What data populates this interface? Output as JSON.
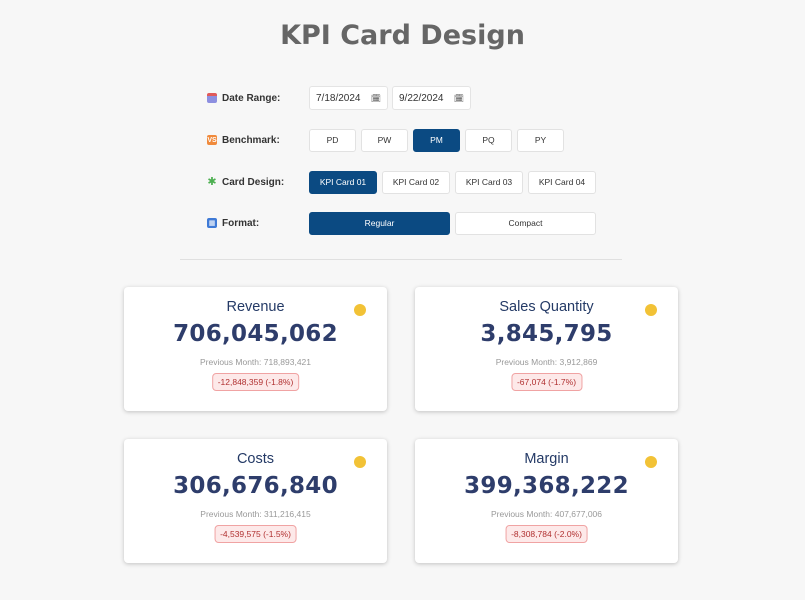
{
  "title": "KPI Card Design",
  "controls": {
    "date_range": {
      "label": "Date Range:",
      "start": "7/18/2024",
      "end": "9/22/2024"
    },
    "benchmark": {
      "label": "Benchmark:",
      "options": [
        "PD",
        "PW",
        "PM",
        "PQ",
        "PY"
      ],
      "selected": "PM"
    },
    "card_design": {
      "label": "Card Design:",
      "options": [
        "KPI Card 01",
        "KPI Card 02",
        "KPI Card 03",
        "KPI Card 04"
      ],
      "selected": "KPI Card 01"
    },
    "format": {
      "label": "Format:",
      "options": [
        "Regular",
        "Compact"
      ],
      "selected": "Regular"
    }
  },
  "cards": [
    {
      "title": "Revenue",
      "value": "706,045,062",
      "previous": "Previous Month: 718,893,421",
      "change": "-12,848,359 (-1.8%)"
    },
    {
      "title": "Sales Quantity",
      "value": "3,845,795",
      "previous": "Previous Month: 3,912,869",
      "change": "-67,074 (-1.7%)"
    },
    {
      "title": "Costs",
      "value": "306,676,840",
      "previous": "Previous Month: 311,216,415",
      "change": "-4,539,575 (-1.5%)"
    },
    {
      "title": "Margin",
      "value": "399,368,222",
      "previous": "Previous Month: 407,677,006",
      "change": "-8,308,784 (-2.0%)"
    }
  ],
  "colors": {
    "accent": "#0b4a82",
    "status_dot": "#f2c236",
    "negative_bg": "#fde9e9",
    "negative_text": "#b03030"
  },
  "icons": [
    "calendar-icon",
    "benchmark-icon",
    "puzzle-icon",
    "grid-icon",
    "date-picker-icon"
  ]
}
